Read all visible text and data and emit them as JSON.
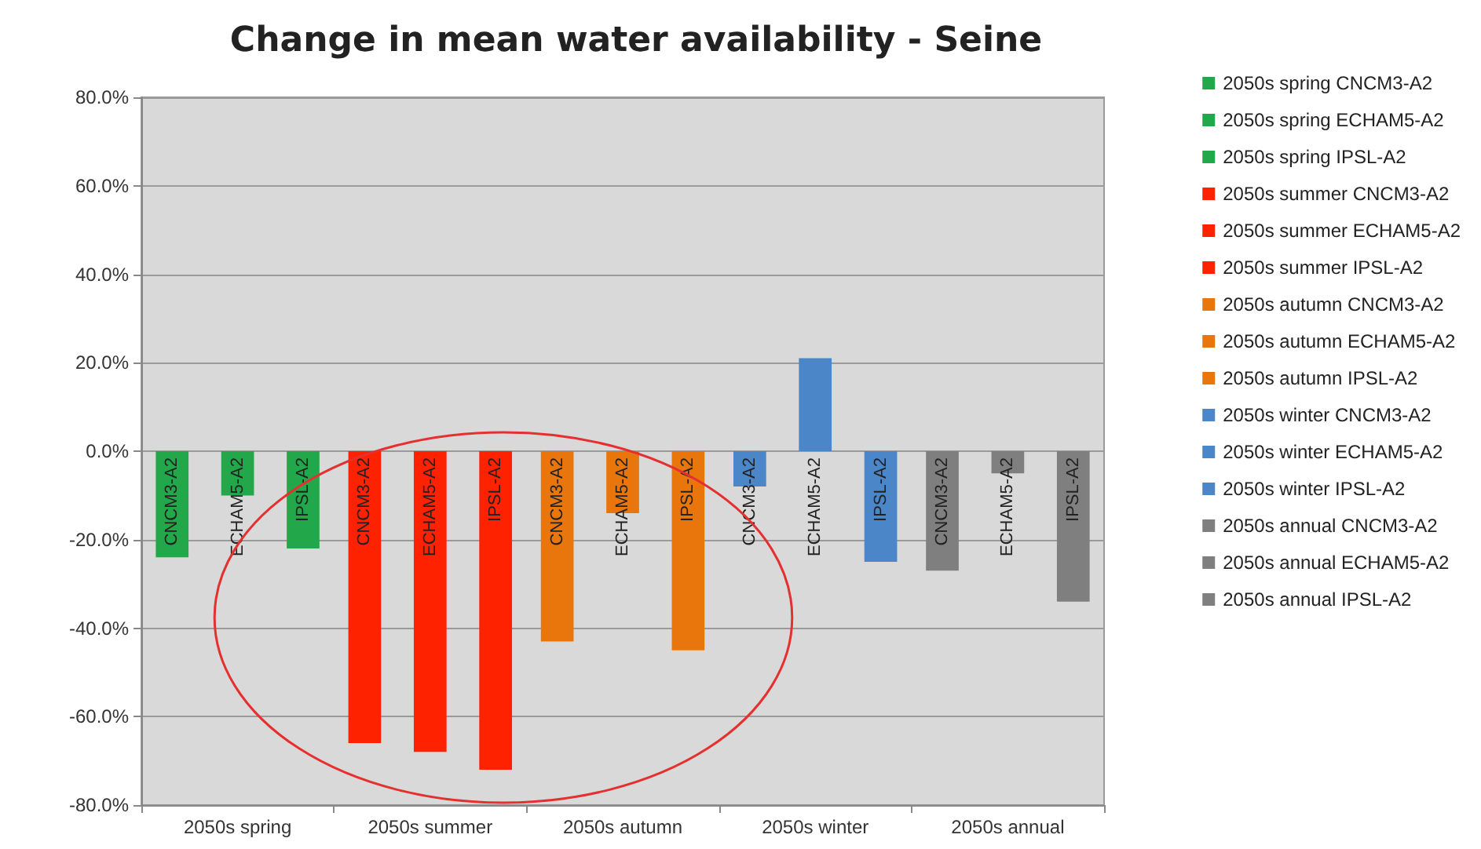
{
  "chart_data": {
    "type": "bar",
    "title": "Change in mean water availability - Seine",
    "categories": [
      "2050s spring",
      "2050s summer",
      "2050s autumn",
      "2050s winter",
      "2050s annual"
    ],
    "series": [
      {
        "name": "2050s spring CNCM3-A2",
        "color": "#22a84a",
        "values": [
          -24,
          null,
          null,
          null,
          null
        ]
      },
      {
        "name": "2050s spring ECHAM5-A2",
        "color": "#22a84a",
        "values": [
          -10,
          null,
          null,
          null,
          null
        ]
      },
      {
        "name": "2050s spring IPSL-A2",
        "color": "#22a84a",
        "values": [
          -22,
          null,
          null,
          null,
          null
        ]
      },
      {
        "name": "2050s summer CNCM3-A2",
        "color": "#ff2200",
        "values": [
          null,
          -66,
          null,
          null,
          null
        ]
      },
      {
        "name": "2050s summer ECHAM5-A2",
        "color": "#ff2200",
        "values": [
          null,
          -68,
          null,
          null,
          null
        ]
      },
      {
        "name": "2050s summer IPSL-A2",
        "color": "#ff2200",
        "values": [
          null,
          -72,
          null,
          null,
          null
        ]
      },
      {
        "name": "2050s autumn CNCM3-A2",
        "color": "#e8760c",
        "values": [
          null,
          null,
          -43,
          null,
          null
        ]
      },
      {
        "name": "2050s autumn ECHAM5-A2",
        "color": "#e8760c",
        "values": [
          null,
          null,
          -14,
          null,
          null
        ]
      },
      {
        "name": "2050s autumn IPSL-A2",
        "color": "#e8760c",
        "values": [
          null,
          null,
          -45,
          null,
          null
        ]
      },
      {
        "name": "2050s winter CNCM3-A2",
        "color": "#4a86c8",
        "values": [
          null,
          null,
          null,
          -8,
          null
        ]
      },
      {
        "name": "2050s winter ECHAM5-A2",
        "color": "#4a86c8",
        "values": [
          null,
          null,
          null,
          21,
          null
        ]
      },
      {
        "name": "2050s winter IPSL-A2",
        "color": "#4a86c8",
        "values": [
          null,
          null,
          null,
          -25,
          null
        ]
      },
      {
        "name": "2050s annual CNCM3-A2",
        "color": "#7f7f7f",
        "values": [
          null,
          null,
          null,
          null,
          -27
        ]
      },
      {
        "name": "2050s annual ECHAM5-A2",
        "color": "#7f7f7f",
        "values": [
          null,
          null,
          null,
          null,
          -5
        ]
      },
      {
        "name": "2050s annual IPSL-A2",
        "color": "#7f7f7f",
        "values": [
          null,
          null,
          null,
          null,
          -34
        ]
      }
    ],
    "annotations": [
      "CNCM3-A2",
      "ECHAM5-A2",
      "IPSL-A2",
      "CNCM3-A2",
      "ECHAM5-A2",
      "IPSL-A2",
      "CNCM3-A2",
      "ECHAM5-A2",
      "IPSL-A2",
      "CNCM3-A2",
      "ECHAM5-A2",
      "IPSL-A2",
      "CNCM3-A2",
      "ECHAM5-A2",
      "IPSL-A2"
    ],
    "ylim": [
      -80,
      80
    ],
    "yticks": [
      {
        "value": -80,
        "label": "-80.0%"
      },
      {
        "value": -60,
        "label": "-60.0%"
      },
      {
        "value": -40,
        "label": "-40.0%"
      },
      {
        "value": -20,
        "label": "-20.0%"
      },
      {
        "value": 0,
        "label": "0.0%"
      },
      {
        "value": 20,
        "label": "20.0%"
      },
      {
        "value": 40,
        "label": "40.0%"
      },
      {
        "value": 60,
        "label": "60.0%"
      },
      {
        "value": 80,
        "label": "80.0%"
      }
    ],
    "grid": "y",
    "legend": "right"
  }
}
